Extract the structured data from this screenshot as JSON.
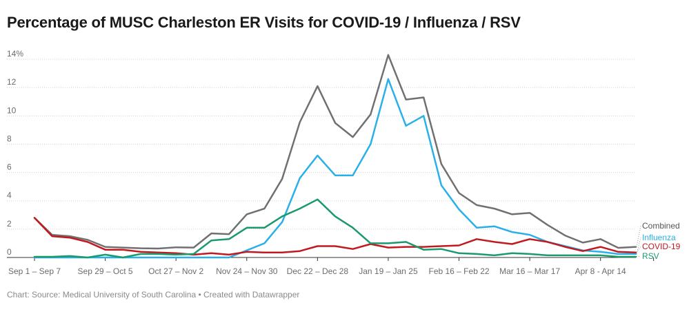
{
  "chart_data": {
    "type": "line",
    "title": "Percentage of MUSC Charleston ER Visits for COVID-19 / Influenza / RSV",
    "source": "Chart: Source: Medical University of South Carolina • Created with Datawrapper",
    "xlabel": "",
    "ylabel": "",
    "ylim": [
      0,
      14
    ],
    "yticks": [
      0,
      2,
      4,
      6,
      8,
      10,
      12,
      14
    ],
    "ytick_labels": [
      "0",
      "2",
      "4",
      "6",
      "8",
      "10",
      "12",
      "14%"
    ],
    "x_tick_index": [
      0,
      4,
      8,
      12,
      16,
      20,
      24,
      28,
      32,
      35
    ],
    "x_tick_labels": [
      "Sep 1 – Sep 7",
      "Sep 29 – Oct 5",
      "Oct 27 – Nov 2",
      "Nov 24 – Nov 30",
      "Dec 22 – Dec 28",
      "Jan 19 – Jan 25",
      "Feb 16 – Feb 22",
      "Mar 16 – Mar 17",
      "Apr 8 - Apr 14",
      ""
    ],
    "grid": true,
    "series": [
      {
        "name": "Combined",
        "color": "#707070",
        "values": [
          2.8,
          1.6,
          1.5,
          1.25,
          0.75,
          0.7,
          0.65,
          0.63,
          0.72,
          0.7,
          1.7,
          1.65,
          3.05,
          3.45,
          5.55,
          9.55,
          12.1,
          9.5,
          8.5,
          10.1,
          14.3,
          11.15,
          11.3,
          6.6,
          4.55,
          3.7,
          3.45,
          3.05,
          3.15,
          2.3,
          1.55,
          1.05,
          1.3,
          0.68,
          0.75
        ]
      },
      {
        "name": "Influenza",
        "color": "#29b0e8",
        "values": [
          0.0,
          0.0,
          0.0,
          0.0,
          0.0,
          0.0,
          0.0,
          0.0,
          0.0,
          0.0,
          0.0,
          0.0,
          0.5,
          1.0,
          2.5,
          5.6,
          7.2,
          5.8,
          5.8,
          8.0,
          12.6,
          9.3,
          10.0,
          5.1,
          3.4,
          2.1,
          2.2,
          1.8,
          1.6,
          1.1,
          0.8,
          0.5,
          0.4,
          0.25,
          0.25
        ]
      },
      {
        "name": "COVID-19",
        "color": "#c0191f",
        "values": [
          2.8,
          1.5,
          1.4,
          1.1,
          0.55,
          0.55,
          0.4,
          0.35,
          0.3,
          0.2,
          0.3,
          0.2,
          0.4,
          0.35,
          0.35,
          0.45,
          0.8,
          0.8,
          0.6,
          0.95,
          0.7,
          0.75,
          0.75,
          0.8,
          0.85,
          1.3,
          1.1,
          0.95,
          1.3,
          1.1,
          0.75,
          0.45,
          0.75,
          0.4,
          0.35
        ]
      },
      {
        "name": "RSV",
        "color": "#1a9a6c",
        "values": [
          0.05,
          0.05,
          0.1,
          0.0,
          0.2,
          0.0,
          0.25,
          0.25,
          0.2,
          0.25,
          1.2,
          1.3,
          2.1,
          2.1,
          2.9,
          3.45,
          4.1,
          2.9,
          2.1,
          1.0,
          1.0,
          1.1,
          0.55,
          0.6,
          0.3,
          0.25,
          0.15,
          0.3,
          0.25,
          0.15,
          0.15,
          0.15,
          0.15,
          0.05,
          0.05
        ]
      }
    ]
  }
}
